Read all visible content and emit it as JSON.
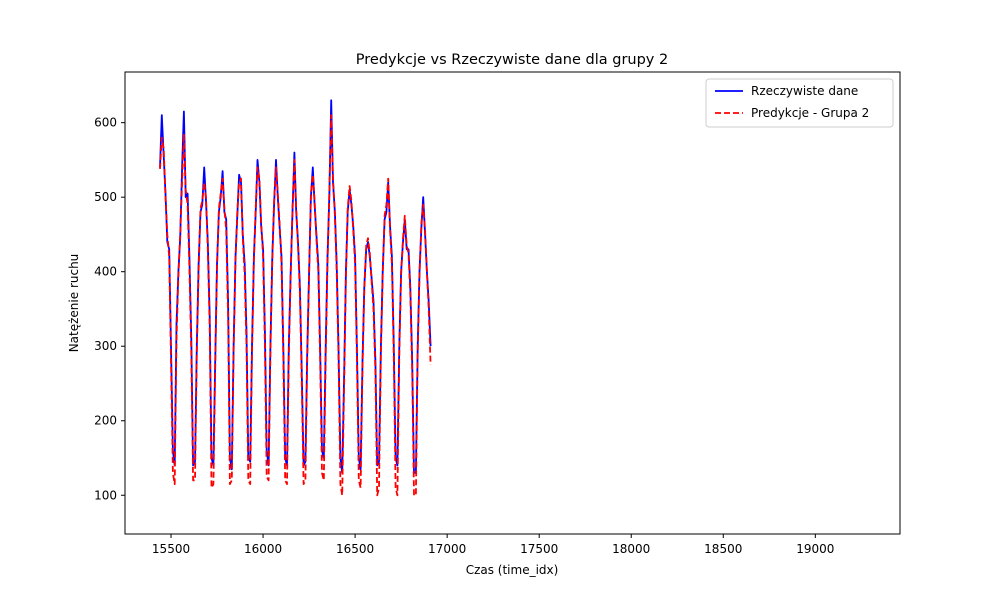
{
  "chart_data": {
    "type": "line",
    "title": "Predykcje vs Rzeczywiste dane dla grupy 2",
    "xlabel": "Czas (time_idx)",
    "ylabel": "Natężenie ruchu",
    "xlim": [
      15250,
      19460
    ],
    "ylim": [
      48,
      668
    ],
    "x_ticks": [
      15500,
      16000,
      16500,
      17000,
      17500,
      18000,
      18500,
      19000
    ],
    "y_ticks": [
      100,
      200,
      300,
      400,
      500,
      600
    ],
    "grid": false,
    "legend_position": "top-right",
    "x_start": 15440,
    "x_step": 10,
    "series": [
      {
        "name": "Rzeczywiste dane",
        "color": "#0000ff",
        "style": "solid",
        "values": [
          540,
          610,
          555,
          505,
          440,
          430,
          300,
          160,
          140,
          330,
          400,
          445,
          540,
          615,
          500,
          505,
          420,
          310,
          140,
          145,
          300,
          410,
          480,
          490,
          540,
          495,
          440,
          340,
          150,
          140,
          280,
          410,
          480,
          500,
          535,
          480,
          470,
          360,
          150,
          135,
          300,
          420,
          475,
          530,
          520,
          450,
          410,
          320,
          150,
          145,
          300,
          420,
          480,
          550,
          520,
          460,
          430,
          320,
          160,
          140,
          300,
          420,
          490,
          550,
          500,
          460,
          420,
          300,
          150,
          140,
          300,
          400,
          480,
          560,
          480,
          440,
          380,
          270,
          140,
          145,
          290,
          400,
          500,
          540,
          490,
          450,
          410,
          300,
          160,
          150,
          300,
          420,
          500,
          630,
          520,
          480,
          410,
          300,
          150,
          130,
          260,
          400,
          480,
          510,
          490,
          460,
          420,
          300,
          150,
          135,
          280,
          380,
          430,
          440,
          420,
          390,
          360,
          280,
          140,
          145,
          300,
          400,
          470,
          480,
          520,
          460,
          420,
          300,
          150,
          140,
          300,
          400,
          440,
          470,
          430,
          430,
          380,
          280,
          130,
          130,
          300,
          400,
          460,
          500,
          450,
          400,
          360,
          300
        ]
      },
      {
        "name": "Predykcje - Grupa 2",
        "color": "#ff0000",
        "style": "dashed",
        "values": [
          538,
          580,
          565,
          500,
          450,
          420,
          280,
          130,
          115,
          310,
          395,
          450,
          520,
          585,
          510,
          490,
          405,
          290,
          120,
          120,
          290,
          400,
          485,
          495,
          520,
          500,
          430,
          325,
          110,
          115,
          270,
          405,
          485,
          505,
          525,
          485,
          455,
          340,
          115,
          120,
          290,
          415,
          480,
          520,
          525,
          445,
          395,
          300,
          120,
          115,
          290,
          415,
          485,
          540,
          525,
          465,
          420,
          300,
          125,
          120,
          290,
          415,
          495,
          540,
          505,
          465,
          410,
          285,
          120,
          115,
          285,
          395,
          485,
          550,
          485,
          435,
          370,
          255,
          115,
          120,
          280,
          395,
          505,
          530,
          495,
          445,
          400,
          285,
          130,
          120,
          285,
          410,
          505,
          610,
          525,
          475,
          400,
          285,
          115,
          100,
          245,
          390,
          485,
          515,
          495,
          455,
          410,
          285,
          120,
          110,
          270,
          375,
          435,
          445,
          425,
          385,
          350,
          265,
          100,
          110,
          290,
          395,
          475,
          490,
          525,
          455,
          410,
          285,
          110,
          100,
          290,
          395,
          445,
          475,
          435,
          425,
          370,
          265,
          100,
          100,
          290,
          395,
          465,
          490,
          455,
          400,
          350,
          275
        ]
      }
    ]
  }
}
